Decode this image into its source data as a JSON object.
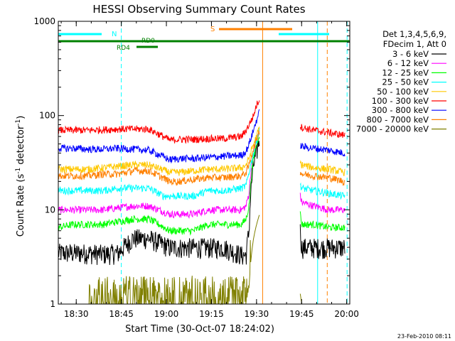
{
  "chart_data": {
    "type": "line",
    "title": "HESSI Observing Summary Count Rates",
    "xlabel": "Start Time (30-Oct-07 18:24:02)",
    "ylabel_main": "Count Rate (s",
    "ylabel_sup1": "-1",
    "ylabel_mid": " detector",
    "ylabel_sup2": "-1",
    "ylabel_end": ")",
    "xlim_minutes": [
      0,
      97
    ],
    "ylim": [
      1,
      1000
    ],
    "yscale": "log",
    "x_ticks": [
      {
        "label": "18:30",
        "min": 5.97
      },
      {
        "label": "18:45",
        "min": 20.97
      },
      {
        "label": "19:00",
        "min": 35.97
      },
      {
        "label": "19:15",
        "min": 50.97
      },
      {
        "label": "19:30",
        "min": 65.97
      },
      {
        "label": "19:45",
        "min": 80.97
      },
      {
        "label": "20:00",
        "min": 95.97
      }
    ],
    "y_ticks": [
      {
        "label": "1",
        "value": 1
      },
      {
        "label": "10",
        "value": 10
      },
      {
        "label": "100",
        "value": 100
      },
      {
        "label": "1000",
        "value": 1000
      }
    ],
    "legend_header": [
      "Det 1,3,4,5,6,9,",
      "FDecim 1, Att 0"
    ],
    "legend_position": "right",
    "segments": [
      [
        0,
        35
      ],
      [
        55,
        83
      ],
      [
        1000,
        1000
      ]
    ],
    "series": [
      {
        "name": "3 - 6 keV",
        "color": "#000000",
        "values": [
          [
            0,
            3.5
          ],
          [
            5,
            3.5
          ],
          [
            10,
            3.5
          ],
          [
            15,
            3.4
          ],
          [
            20,
            3.5
          ],
          [
            25,
            5.0
          ],
          [
            30,
            5.0
          ],
          [
            37,
            4.0
          ],
          [
            40,
            4.0
          ],
          [
            45,
            4.0
          ],
          [
            50,
            4.0
          ],
          [
            55,
            4.0
          ],
          [
            61,
            3.3
          ],
          [
            62.5,
            3.3
          ],
          [
            63.5,
            6.0
          ],
          [
            65,
            30.0
          ],
          [
            66,
            40.0
          ],
          [
            67,
            60.0
          ],
          [
            81,
            4.0
          ],
          [
            85,
            4.0
          ],
          [
            90,
            4.0
          ],
          [
            95,
            4.0
          ]
        ]
      },
      {
        "name": "6 - 12 keV",
        "color": "#ff00ff",
        "values": [
          [
            0,
            10.0
          ],
          [
            5,
            10.0
          ],
          [
            10,
            10.0
          ],
          [
            15,
            10.0
          ],
          [
            20,
            10.5
          ],
          [
            25,
            11.0
          ],
          [
            30,
            11.0
          ],
          [
            37,
            9.0
          ],
          [
            40,
            9.0
          ],
          [
            45,
            9.0
          ],
          [
            50,
            10.0
          ],
          [
            55,
            10.0
          ],
          [
            61,
            10.0
          ],
          [
            62.5,
            11.0
          ],
          [
            63.5,
            15.0
          ],
          [
            65,
            40.0
          ],
          [
            66,
            55.0
          ],
          [
            67,
            70.0
          ],
          [
            81,
            12.0
          ],
          [
            85,
            11.0
          ],
          [
            90,
            10.0
          ],
          [
            95,
            10.0
          ]
        ]
      },
      {
        "name": "12 - 25 keV",
        "color": "#00ff00",
        "values": [
          [
            0,
            6.5
          ],
          [
            5,
            7.0
          ],
          [
            10,
            7.0
          ],
          [
            15,
            7.0
          ],
          [
            20,
            7.5
          ],
          [
            25,
            8.0
          ],
          [
            30,
            8.0
          ],
          [
            37,
            6.0
          ],
          [
            40,
            6.0
          ],
          [
            45,
            6.0
          ],
          [
            50,
            7.0
          ],
          [
            55,
            7.0
          ],
          [
            61,
            7.0
          ],
          [
            62.5,
            8.0
          ],
          [
            63.5,
            11.0
          ],
          [
            65,
            35.0
          ],
          [
            66,
            50.0
          ],
          [
            67,
            65.0
          ],
          [
            81,
            7.0
          ],
          [
            85,
            7.0
          ],
          [
            90,
            6.5
          ],
          [
            95,
            6.5
          ]
        ]
      },
      {
        "name": "25 - 50 keV",
        "color": "#00ffff",
        "values": [
          [
            0,
            16.0
          ],
          [
            5,
            16.0
          ],
          [
            10,
            16.0
          ],
          [
            15,
            16.0
          ],
          [
            20,
            17.0
          ],
          [
            25,
            17.0
          ],
          [
            30,
            17.0
          ],
          [
            35,
            14.0
          ],
          [
            40,
            14.0
          ],
          [
            45,
            14.0
          ],
          [
            50,
            16.0
          ],
          [
            55,
            16.0
          ],
          [
            61,
            17.0
          ],
          [
            62.5,
            18.0
          ],
          [
            63.5,
            25.0
          ],
          [
            65,
            40.0
          ],
          [
            66,
            55.0
          ],
          [
            67,
            70.0
          ],
          [
            81,
            17.0
          ],
          [
            85,
            16.0
          ],
          [
            90,
            15.0
          ],
          [
            95,
            14.0
          ]
        ]
      },
      {
        "name": "50 - 100 keV",
        "color": "#ffc800",
        "values": [
          [
            0,
            27.0
          ],
          [
            5,
            27.0
          ],
          [
            10,
            27.0
          ],
          [
            15,
            28.0
          ],
          [
            20,
            29.0
          ],
          [
            25,
            30.0
          ],
          [
            30,
            30.0
          ],
          [
            37,
            25.0
          ],
          [
            40,
            25.0
          ],
          [
            45,
            26.0
          ],
          [
            50,
            27.0
          ],
          [
            55,
            27.0
          ],
          [
            61,
            28.0
          ],
          [
            62.5,
            30.0
          ],
          [
            63.5,
            35.0
          ],
          [
            65,
            50.0
          ],
          [
            66,
            60.0
          ],
          [
            67,
            75.0
          ],
          [
            81,
            30.0
          ],
          [
            85,
            28.0
          ],
          [
            90,
            27.0
          ],
          [
            95,
            25.0
          ]
        ]
      },
      {
        "name": "100 - 300 keV",
        "color": "#ff0000",
        "values": [
          [
            0,
            70.0
          ],
          [
            5,
            70.0
          ],
          [
            10,
            70.0
          ],
          [
            15,
            71.0
          ],
          [
            20,
            72.0
          ],
          [
            25,
            72.0
          ],
          [
            30,
            72.0
          ],
          [
            37,
            55.0
          ],
          [
            40,
            56.0
          ],
          [
            45,
            56.0
          ],
          [
            50,
            57.0
          ],
          [
            55,
            57.0
          ],
          [
            61,
            60.0
          ],
          [
            62.5,
            70.0
          ],
          [
            63.5,
            80.0
          ],
          [
            65,
            100.0
          ],
          [
            66,
            130.0
          ],
          [
            67,
            150.0
          ],
          [
            81,
            75.0
          ],
          [
            85,
            70.0
          ],
          [
            90,
            66.0
          ],
          [
            95,
            62.0
          ]
        ]
      },
      {
        "name": "300 - 800 keV",
        "color": "#0000ff",
        "values": [
          [
            0,
            45.0
          ],
          [
            5,
            45.0
          ],
          [
            10,
            44.0
          ],
          [
            15,
            44.0
          ],
          [
            20,
            45.0
          ],
          [
            25,
            44.0
          ],
          [
            30,
            43.0
          ],
          [
            37,
            34.0
          ],
          [
            40,
            35.0
          ],
          [
            45,
            35.0
          ],
          [
            50,
            36.0
          ],
          [
            55,
            37.0
          ],
          [
            61,
            38.0
          ],
          [
            62.5,
            42.0
          ],
          [
            63.5,
            50.0
          ],
          [
            65,
            70.0
          ],
          [
            66,
            90.0
          ],
          [
            67,
            110.0
          ],
          [
            81,
            47.0
          ],
          [
            85,
            45.0
          ],
          [
            90,
            43.0
          ],
          [
            95,
            40.0
          ]
        ]
      },
      {
        "name": "800 - 7000 keV",
        "color": "#ff8000",
        "values": [
          [
            0,
            23.0
          ],
          [
            5,
            23.0
          ],
          [
            10,
            23.0
          ],
          [
            15,
            24.0
          ],
          [
            20,
            24.0
          ],
          [
            25,
            26.0
          ],
          [
            30,
            26.0
          ],
          [
            37,
            20.0
          ],
          [
            40,
            20.0
          ],
          [
            45,
            21.0
          ],
          [
            50,
            22.0
          ],
          [
            55,
            22.0
          ],
          [
            61,
            23.0
          ],
          [
            62.5,
            25.0
          ],
          [
            63.5,
            30.0
          ],
          [
            65,
            45.0
          ],
          [
            66,
            55.0
          ],
          [
            67,
            70.0
          ],
          [
            81,
            24.0
          ],
          [
            85,
            23.0
          ],
          [
            90,
            22.0
          ],
          [
            95,
            20.0
          ]
        ]
      },
      {
        "name": "7000 - 20000 keV",
        "color": "#808000",
        "values": [
          [
            0,
            1.0
          ],
          [
            5,
            1.0
          ],
          [
            10,
            1.0
          ],
          [
            15,
            1.0
          ],
          [
            20,
            1.0
          ],
          [
            25,
            1.0
          ],
          [
            30,
            1.0
          ],
          [
            35,
            1.0
          ],
          [
            40,
            1.0
          ],
          [
            45,
            1.0
          ],
          [
            50,
            1.0
          ],
          [
            55,
            1.0
          ],
          [
            61,
            1.0
          ],
          [
            62.5,
            1.0
          ],
          [
            63.5,
            1.5
          ],
          [
            65,
            5.0
          ],
          [
            66,
            7.0
          ],
          [
            67,
            9.0
          ],
          [
            81,
            1.0
          ],
          [
            85,
            1.0
          ],
          [
            90,
            1.0
          ],
          [
            95,
            1.0
          ]
        ]
      }
    ],
    "flags": {
      "cyan_label": "N",
      "orange_label": "S",
      "rd4_label": "RD4",
      "rd0_label": "RD0",
      "cyan_color": "#00ffff",
      "orange_color": "#ff8000",
      "green_color": "#008000"
    },
    "orange_lines_min": [
      68,
      89.5
    ],
    "cyan_lines_min": [
      0,
      20.97,
      86.3,
      96.1
    ]
  },
  "footer_date": "23-Feb-2010 08:11"
}
